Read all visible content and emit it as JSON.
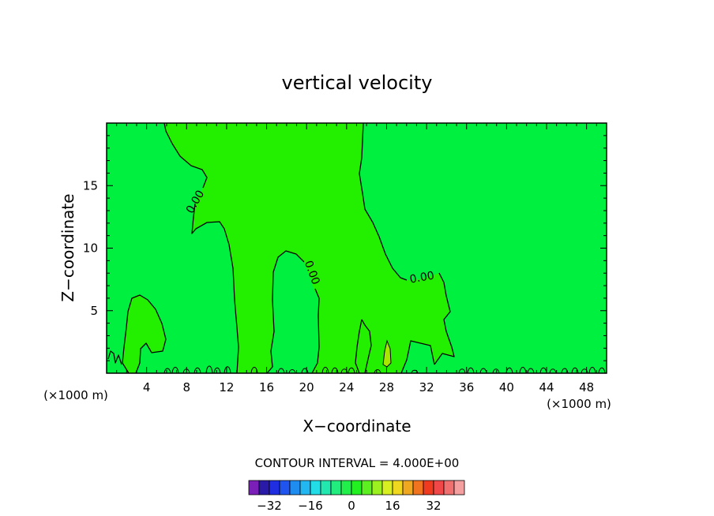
{
  "chart_data": {
    "type": "heatmap",
    "title": "vertical velocity",
    "xlabel": "X−coordinate",
    "ylabel": "Z−coordinate",
    "x_unit_left": "(×1000 m)",
    "x_unit_right": "(×1000 m)",
    "xlim": [
      0,
      50
    ],
    "ylim": [
      0,
      20
    ],
    "x_ticks": [
      4,
      8,
      12,
      16,
      20,
      24,
      28,
      32,
      36,
      40,
      44,
      48
    ],
    "y_ticks": [
      5,
      10,
      15
    ],
    "contour_interval_text": "CONTOUR INTERVAL = 4.000E+00",
    "contour_labels": [
      "0.00",
      "0.00",
      "0.00"
    ],
    "colorbar": {
      "tick_labels": [
        "−32",
        "−16",
        "0",
        "16",
        "32"
      ],
      "tick_values": [
        -32,
        -16,
        0,
        16,
        32
      ],
      "bin_edges_min": -40,
      "bin_width": 4,
      "colors": [
        "#7a1fb8",
        "#2a1aa8",
        "#1f2ee0",
        "#1f55ee",
        "#1f8cf0",
        "#22b7f0",
        "#22dde6",
        "#22e8b0",
        "#22ec7e",
        "#22f04a",
        "#22f020",
        "#5cf020",
        "#9cf020",
        "#d8f020",
        "#f0d820",
        "#f0a820",
        "#f07420",
        "#f03a20",
        "#f04848",
        "#f07070",
        "#f4a0a0"
      ]
    },
    "fields": {
      "background_color": "#00f040",
      "updraft_color": "#22f000",
      "weak_positive_color": "#a8e800"
    }
  }
}
